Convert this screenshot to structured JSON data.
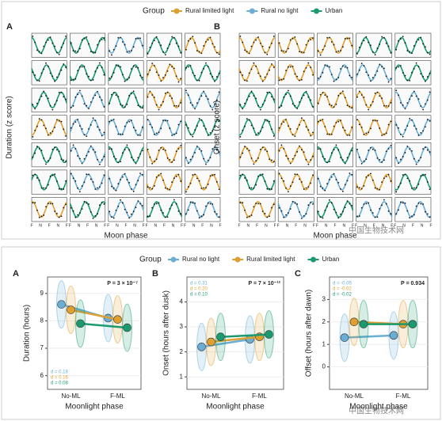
{
  "legend_top": {
    "title": "Group",
    "items": [
      {
        "name": "Rural limited light",
        "color": "#e0a030"
      },
      {
        "name": "Rural no light",
        "color": "#6aaed6"
      },
      {
        "name": "Urban",
        "color": "#1a9a6e"
      }
    ]
  },
  "legend_bottom": {
    "title": "Group",
    "items": [
      {
        "name": "Rural no light",
        "color": "#6aaed6"
      },
      {
        "name": "Rural limited light",
        "color": "#e0a030"
      },
      {
        "name": "Urban",
        "color": "#1a9a6e"
      }
    ]
  },
  "chart_data": [
    {
      "type": "small-multiples",
      "panel": "A",
      "ylabel": "Duration (z score)",
      "xlabel": "Moon phase",
      "xtick_labels": [
        "F",
        "N",
        "F",
        "N",
        "F"
      ],
      "panel_series": [
        [
          2,
          2,
          1,
          2,
          0
        ],
        [
          2,
          2,
          2,
          0,
          2
        ],
        [
          2,
          1,
          2,
          0,
          1
        ],
        [
          0,
          1,
          1,
          1,
          2
        ],
        [
          2,
          1,
          2,
          0,
          1
        ],
        [
          2,
          1,
          1,
          0,
          0
        ],
        [
          0,
          2,
          1,
          2,
          1
        ]
      ]
    },
    {
      "type": "small-multiples",
      "panel": "B",
      "ylabel": "Onset (z score)",
      "xlabel": "Moon phase",
      "xtick_labels": [
        "F",
        "N",
        "F",
        "N",
        "F"
      ],
      "panel_series": [
        [
          0,
          0,
          0,
          2,
          2
        ],
        [
          0,
          0,
          1,
          1,
          2
        ],
        [
          2,
          2,
          0,
          0,
          1
        ],
        [
          2,
          0,
          0,
          0,
          1
        ],
        [
          0,
          0,
          2,
          1,
          1
        ],
        [
          2,
          0,
          1,
          0,
          2
        ],
        [
          0,
          1,
          2,
          1,
          1
        ]
      ]
    },
    {
      "type": "point-line",
      "panel": "A",
      "ylabel": "Duration (hours)",
      "xlabel": "Moonlight phase",
      "categories": [
        "No-ML",
        "F-ML"
      ],
      "series": [
        {
          "color": "#6aaed6",
          "values": [
            8.6,
            8.1
          ]
        },
        {
          "color": "#e0a030",
          "values": [
            8.4,
            8.05
          ]
        },
        {
          "color": "#1a9a6e",
          "values": [
            7.9,
            7.75
          ]
        }
      ],
      "ylim": [
        5.5,
        9.6
      ],
      "yticks": [
        6,
        7,
        8,
        9
      ],
      "p_label": "P = 3 × 10⁻⁷",
      "effect_labels": [
        "d = 0.18",
        "d = 0.16",
        "d = 0.08"
      ]
    },
    {
      "type": "point-line",
      "panel": "B",
      "ylabel": "Onset (hours after dusk)",
      "xlabel": "Moonlight phase",
      "categories": [
        "No-ML",
        "F-ML"
      ],
      "series": [
        {
          "color": "#6aaed6",
          "values": [
            2.2,
            2.5
          ]
        },
        {
          "color": "#e0a030",
          "values": [
            2.4,
            2.6
          ]
        },
        {
          "color": "#1a9a6e",
          "values": [
            2.6,
            2.7
          ]
        }
      ],
      "ylim": [
        0.5,
        5
      ],
      "yticks": [
        1,
        2,
        3,
        4
      ],
      "p_label": "P = 7 × 10⁻¹²",
      "effect_labels": [
        "d = 0.31",
        "d = 0.20",
        "d = 0.10"
      ]
    },
    {
      "type": "point-line",
      "panel": "C",
      "ylabel": "Offset (hours after dawn)",
      "xlabel": "Moonlight phase",
      "categories": [
        "No-ML",
        "F-ML"
      ],
      "series": [
        {
          "color": "#6aaed6",
          "values": [
            1.3,
            1.4
          ]
        },
        {
          "color": "#e0a030",
          "values": [
            2.0,
            1.9
          ]
        },
        {
          "color": "#1a9a6e",
          "values": [
            1.9,
            1.9
          ]
        }
      ],
      "ylim": [
        -1,
        4
      ],
      "yticks": [
        0,
        1,
        2,
        3
      ],
      "p_label": "P = 0.934",
      "effect_labels": [
        "d = -0.05",
        "d = -0.02",
        "d = -0.02"
      ]
    }
  ],
  "watermarks": [
    "中国生物技术网",
    "中国生物技术网"
  ]
}
